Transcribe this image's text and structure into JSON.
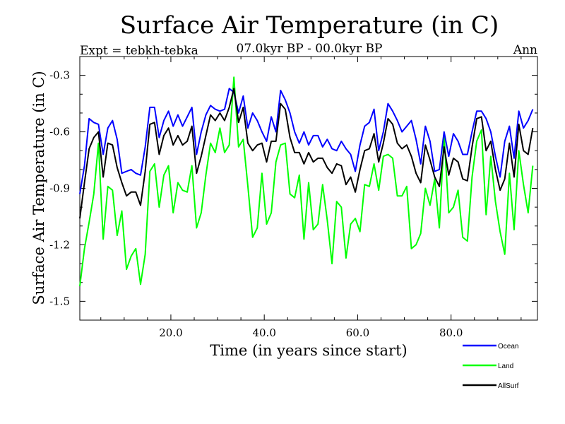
{
  "chart_data": {
    "type": "line",
    "title": "Surface Air Temperature (in C)",
    "subtitle": "07.0kyr BP - 00.0kyr BP",
    "left_label": "Expt = tebkh-tebka",
    "right_label": "Ann",
    "xlabel": "Time (in years since start)",
    "ylabel": "Surface Air Temperature (in C)",
    "xlim": [
      0.5,
      98.5
    ],
    "ylim": [
      -1.6,
      -0.2
    ],
    "xticks": [
      {
        "value": 20,
        "label": "20.0"
      },
      {
        "value": 40,
        "label": "40.0"
      },
      {
        "value": 60,
        "label": "60.0"
      },
      {
        "value": 80,
        "label": "80.0"
      }
    ],
    "yticks": [
      {
        "value": -1.5,
        "label": "-1.5"
      },
      {
        "value": -1.2,
        "label": "-1.2"
      },
      {
        "value": -0.9,
        "label": "-0.9"
      },
      {
        "value": -0.6,
        "label": "-0.6"
      },
      {
        "value": -0.3,
        "label": "-0.3"
      }
    ],
    "x_start": 0.5,
    "x_step": 1,
    "series": [
      {
        "name": "Ocean",
        "color": "#0000ff",
        "values": [
          -0.93,
          -0.78,
          -0.53,
          -0.55,
          -0.56,
          -0.72,
          -0.58,
          -0.54,
          -0.64,
          -0.82,
          -0.81,
          -0.8,
          -0.82,
          -0.83,
          -0.68,
          -0.47,
          -0.47,
          -0.63,
          -0.54,
          -0.49,
          -0.57,
          -0.51,
          -0.57,
          -0.52,
          -0.47,
          -0.72,
          -0.6,
          -0.51,
          -0.46,
          -0.48,
          -0.49,
          -0.48,
          -0.37,
          -0.39,
          -0.5,
          -0.41,
          -0.58,
          -0.5,
          -0.54,
          -0.6,
          -0.65,
          -0.52,
          -0.6,
          -0.38,
          -0.43,
          -0.5,
          -0.6,
          -0.66,
          -0.6,
          -0.67,
          -0.62,
          -0.62,
          -0.68,
          -0.64,
          -0.69,
          -0.7,
          -0.65,
          -0.69,
          -0.72,
          -0.81,
          -0.67,
          -0.57,
          -0.55,
          -0.48,
          -0.7,
          -0.6,
          -0.45,
          -0.49,
          -0.54,
          -0.6,
          -0.57,
          -0.54,
          -0.64,
          -0.77,
          -0.57,
          -0.65,
          -0.81,
          -0.8,
          -0.6,
          -0.73,
          -0.61,
          -0.65,
          -0.72,
          -0.72,
          -0.6,
          -0.49,
          -0.49,
          -0.53,
          -0.6,
          -0.73,
          -0.84,
          -0.65,
          -0.57,
          -0.74,
          -0.49,
          -0.58,
          -0.54,
          -0.48
        ]
      },
      {
        "name": "Land",
        "color": "#00ff00",
        "values": [
          -1.42,
          -1.22,
          -1.08,
          -0.93,
          -0.66,
          -1.17,
          -0.89,
          -0.91,
          -1.15,
          -1.02,
          -1.33,
          -1.26,
          -1.22,
          -1.41,
          -1.25,
          -0.81,
          -0.77,
          -1.0,
          -0.83,
          -0.78,
          -1.03,
          -0.87,
          -0.91,
          -0.92,
          -0.78,
          -1.11,
          -1.03,
          -0.83,
          -0.66,
          -0.71,
          -0.58,
          -0.71,
          -0.67,
          -0.31,
          -0.68,
          -0.64,
          -0.89,
          -1.16,
          -1.11,
          -0.82,
          -1.09,
          -1.03,
          -0.76,
          -0.67,
          -0.66,
          -0.93,
          -0.95,
          -0.83,
          -1.17,
          -0.87,
          -1.12,
          -1.09,
          -0.88,
          -1.07,
          -1.3,
          -0.97,
          -1.0,
          -1.27,
          -1.09,
          -1.06,
          -1.13,
          -0.88,
          -0.89,
          -0.77,
          -0.91,
          -0.73,
          -0.72,
          -0.74,
          -0.94,
          -0.94,
          -0.89,
          -1.22,
          -1.2,
          -1.14,
          -0.9,
          -0.99,
          -0.85,
          -1.11,
          -0.62,
          -1.03,
          -1.0,
          -0.91,
          -1.16,
          -1.18,
          -0.84,
          -0.65,
          -0.59,
          -1.04,
          -0.73,
          -0.97,
          -1.13,
          -1.25,
          -0.82,
          -1.12,
          -0.7,
          -0.88,
          -1.03,
          -0.78
        ]
      },
      {
        "name": "AllSurf",
        "color": "#000000",
        "values": [
          -1.06,
          -0.87,
          -0.69,
          -0.63,
          -0.6,
          -0.84,
          -0.66,
          -0.67,
          -0.79,
          -0.87,
          -0.94,
          -0.92,
          -0.92,
          -0.99,
          -0.81,
          -0.56,
          -0.55,
          -0.72,
          -0.62,
          -0.58,
          -0.67,
          -0.62,
          -0.67,
          -0.65,
          -0.57,
          -0.82,
          -0.73,
          -0.62,
          -0.51,
          -0.54,
          -0.5,
          -0.54,
          -0.47,
          -0.37,
          -0.55,
          -0.47,
          -0.66,
          -0.7,
          -0.67,
          -0.66,
          -0.76,
          -0.65,
          -0.65,
          -0.45,
          -0.48,
          -0.63,
          -0.71,
          -0.71,
          -0.77,
          -0.71,
          -0.76,
          -0.74,
          -0.74,
          -0.79,
          -0.82,
          -0.77,
          -0.78,
          -0.88,
          -0.84,
          -0.92,
          -0.8,
          -0.7,
          -0.69,
          -0.61,
          -0.76,
          -0.66,
          -0.53,
          -0.56,
          -0.66,
          -0.69,
          -0.67,
          -0.73,
          -0.82,
          -0.87,
          -0.67,
          -0.75,
          -0.84,
          -0.89,
          -0.68,
          -0.83,
          -0.74,
          -0.76,
          -0.85,
          -0.86,
          -0.68,
          -0.53,
          -0.52,
          -0.7,
          -0.65,
          -0.8,
          -0.91,
          -0.85,
          -0.66,
          -0.84,
          -0.56,
          -0.7,
          -0.72,
          -0.58
        ]
      }
    ]
  }
}
